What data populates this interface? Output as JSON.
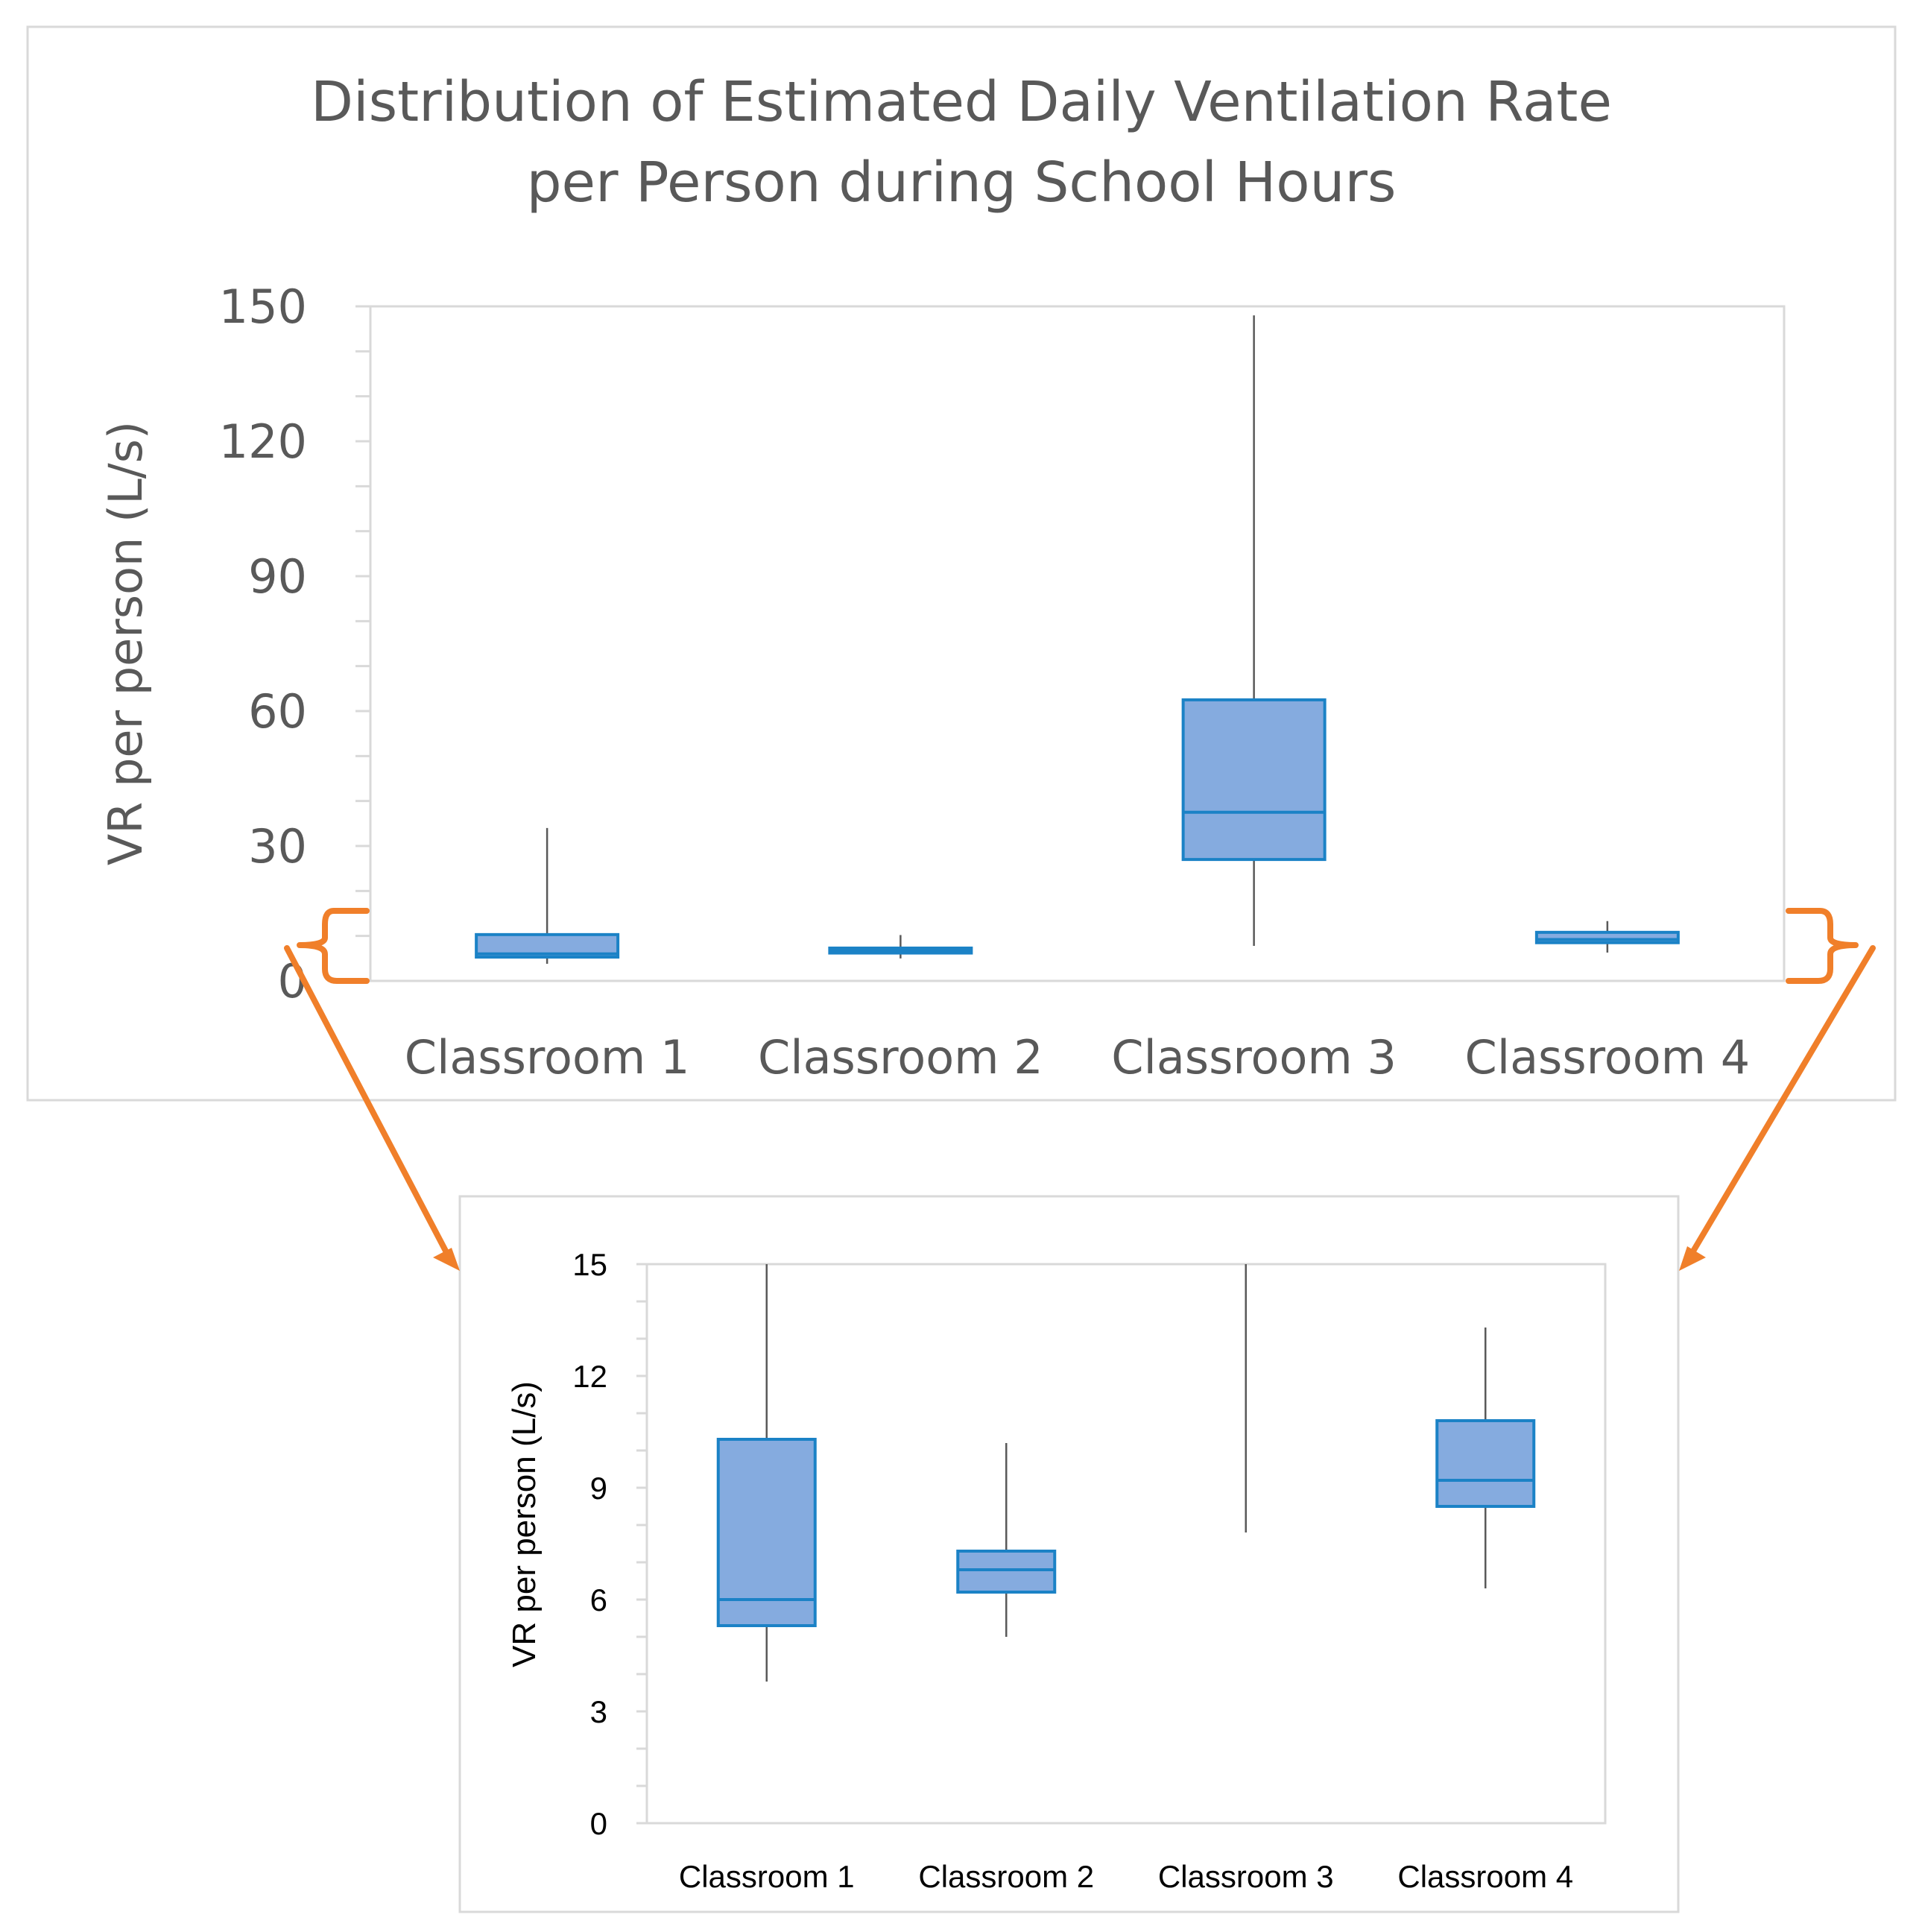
{
  "colors": {
    "box_fill": "#85ABDF",
    "box_stroke": "#1B82C6",
    "whisker": "#595959",
    "axis": "#D9D9D9",
    "callout": "#F07F2A",
    "main_text": "#595959",
    "inset_text": "#000000"
  },
  "chart_data": [
    {
      "id": "main",
      "type": "box",
      "title_lines": [
        "Distribution of Estimated Daily Ventilation Rate",
        "per Person during School Hours"
      ],
      "xlabel": "",
      "ylabel": "VR per person (L/s)",
      "ylim": [
        0,
        150
      ],
      "yticks": [
        "0",
        "30",
        "60",
        "90",
        "120",
        "150"
      ],
      "ytick_values": [
        0,
        30,
        60,
        90,
        120,
        150
      ],
      "minor_step": 10,
      "categories": [
        "Classroom 1",
        "Classroom 2",
        "Classroom 3",
        "Classroom 4"
      ],
      "boxes": [
        {
          "min": 3.8,
          "q1": 5.3,
          "median": 6.0,
          "q3": 10.3,
          "max": 34.0
        },
        {
          "min": 5.0,
          "q1": 6.2,
          "median": 6.8,
          "q3": 7.3,
          "max": 10.2
        },
        {
          "min": 7.8,
          "q1": 27.0,
          "median": 37.5,
          "q3": 62.5,
          "max": 148.0
        },
        {
          "min": 6.3,
          "q1": 8.5,
          "median": 9.2,
          "q3": 10.8,
          "max": 13.3
        }
      ]
    },
    {
      "id": "inset",
      "type": "box",
      "title_lines": [],
      "xlabel": "",
      "ylabel": "VR per person (L/s)",
      "ylim": [
        0,
        15
      ],
      "yticks": [
        "0",
        "3",
        "6",
        "9",
        "12",
        "15"
      ],
      "ytick_values": [
        0,
        3,
        6,
        9,
        12,
        15
      ],
      "minor_step": 1,
      "categories": [
        "Classroom 1",
        "Classroom 2",
        "Classroom 3",
        "Classroom 4"
      ],
      "boxes": [
        {
          "min": 3.8,
          "q1": 5.3,
          "median": 6.0,
          "q3": 10.3,
          "max": 15.0
        },
        {
          "min": 5.0,
          "q1": 6.2,
          "median": 6.8,
          "q3": 7.3,
          "max": 10.2
        },
        {
          "min": 7.8,
          "max": 15.0
        },
        {
          "min": 6.3,
          "q1": 8.5,
          "median": 9.2,
          "q3": 10.8,
          "max": 13.3
        }
      ]
    }
  ]
}
